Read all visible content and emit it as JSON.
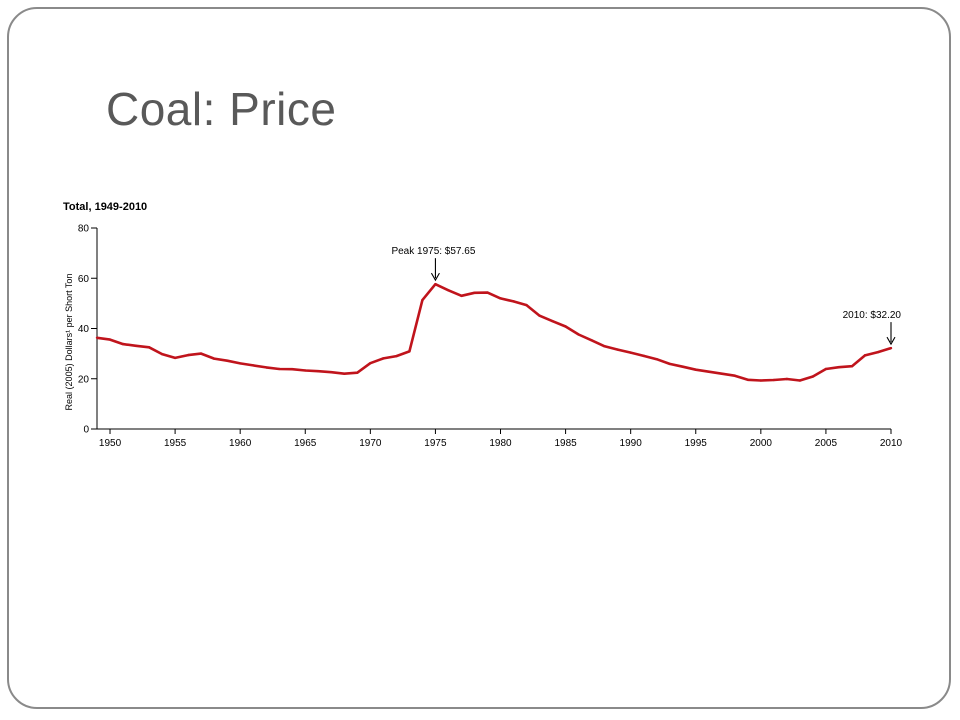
{
  "slide": {
    "title": "Coal:  Price"
  },
  "colors": {
    "line": "#c0141c",
    "axis": "#000000",
    "title_text": "#595959",
    "frame": "#8a8a8a"
  },
  "chart_data": {
    "type": "line",
    "title": "Total, 1949-2010",
    "xlabel": "",
    "ylabel": "Real (2005) Dollars¹ per Short Ton",
    "xlim": [
      1949,
      2010
    ],
    "ylim": [
      0,
      80
    ],
    "x_ticks": [
      1950,
      1955,
      1960,
      1965,
      1970,
      1975,
      1980,
      1985,
      1990,
      1995,
      2000,
      2005,
      2010
    ],
    "x_tick_labels": [
      "1950",
      "1955",
      "1960",
      "1965",
      "1970",
      "1975",
      "1980",
      "1985",
      "1990",
      "1995",
      "2000",
      "2005",
      "2010"
    ],
    "y_ticks": [
      0,
      20,
      40,
      60,
      80
    ],
    "y_tick_labels": [
      "0",
      "20",
      "40",
      "60",
      "80"
    ],
    "grid": false,
    "series": [
      {
        "color": "#c0141c",
        "x": [
          1949,
          1950,
          1951,
          1952,
          1953,
          1954,
          1955,
          1956,
          1957,
          1958,
          1959,
          1960,
          1961,
          1962,
          1963,
          1964,
          1965,
          1966,
          1967,
          1968,
          1969,
          1970,
          1971,
          1972,
          1973,
          1974,
          1975,
          1976,
          1977,
          1978,
          1979,
          1980,
          1981,
          1982,
          1983,
          1984,
          1985,
          1986,
          1987,
          1988,
          1989,
          1990,
          1991,
          1992,
          1993,
          1994,
          1995,
          1996,
          1997,
          1998,
          1999,
          2000,
          2001,
          2002,
          2003,
          2004,
          2005,
          2006,
          2007,
          2008,
          2009,
          2010
        ],
        "y": [
          36.3,
          35.6,
          33.8,
          33.1,
          32.5,
          29.8,
          28.3,
          29.4,
          30.0,
          28.0,
          27.2,
          26.1,
          25.3,
          24.5,
          23.9,
          23.8,
          23.3,
          23.0,
          22.6,
          22.0,
          22.4,
          26.2,
          28.1,
          29.0,
          30.9,
          51.3,
          57.65,
          55.2,
          53.0,
          54.2,
          54.3,
          52.0,
          50.8,
          49.3,
          45.1,
          42.9,
          40.8,
          37.6,
          35.3,
          32.9,
          31.6,
          30.4,
          29.1,
          27.8,
          25.9,
          24.8,
          23.6,
          22.8,
          22.0,
          21.2,
          19.6,
          19.3,
          19.5,
          19.9,
          19.3,
          20.9,
          23.9,
          24.6,
          25.0,
          29.3,
          30.6,
          32.2
        ]
      }
    ],
    "annotations": [
      {
        "text": "Peak 1975:  $57.65",
        "x": 1975,
        "y": 57.65
      },
      {
        "text": "2010:  $32.20",
        "x": 2010,
        "y": 32.2
      }
    ]
  }
}
